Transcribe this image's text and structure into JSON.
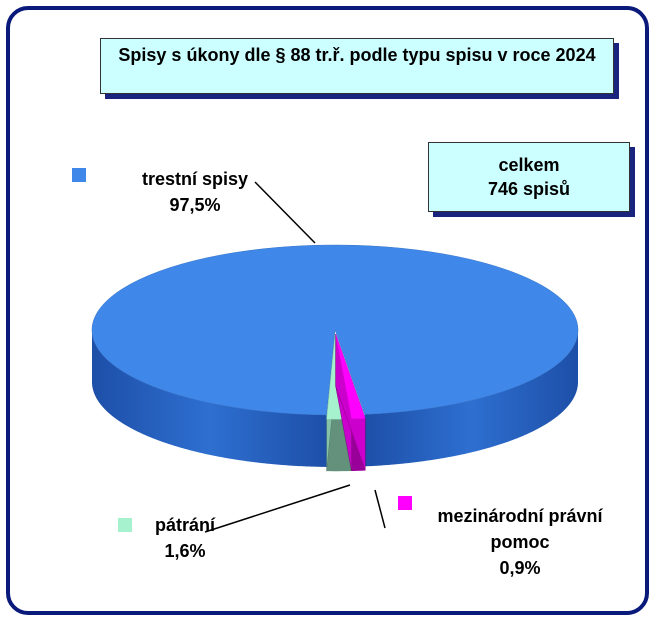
{
  "chart_data": {
    "type": "pie",
    "title": "Spisy s úkony dle § 88 tr.ř. podle typu spisu v roce 2024",
    "annotation": [
      "celkem",
      "746 spisů"
    ],
    "categories": [
      "trestní spisy",
      "pátrání",
      "mezinárodní právní pomoc"
    ],
    "values": [
      97.5,
      1.6,
      0.9
    ],
    "value_labels": [
      "97,5%",
      "1,6%",
      "0,9%"
    ],
    "colors": [
      "#3f88ea",
      "#a6f2cf",
      "#ff00ff"
    ]
  }
}
